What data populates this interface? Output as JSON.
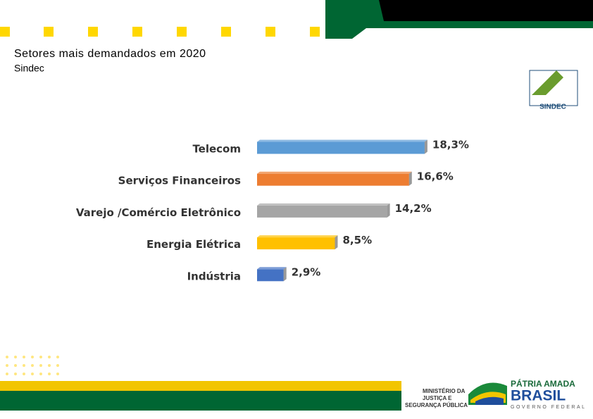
{
  "chart_data": {
    "type": "bar",
    "orientation": "horizontal",
    "title": "Setores mais demandados em 2020",
    "subtitle": "Sindec",
    "categories": [
      "Telecom",
      "Serviços Financeiros",
      "Varejo /Comércio Eletrônico",
      "Energia Elétrica",
      "Indústria"
    ],
    "series": [
      {
        "values": [
          18.3,
          16.6,
          14.2,
          8.5,
          2.9
        ],
        "value_labels": [
          "18,3%",
          "16,6%",
          "14,2%",
          "8,5%",
          "2,9%"
        ],
        "colors": [
          "#5b9bd5",
          "#ed7d31",
          "#a5a5a5",
          "#ffc000",
          "#4472c4"
        ]
      }
    ]
  },
  "branding": {
    "sindec": "SINDEC",
    "ministry": [
      "MINISTÉRIO DA",
      "JUSTIÇA E",
      "SEGURANÇA PÚBLICA"
    ],
    "motto": "PÁTRIA AMADA",
    "country": "BRASIL",
    "government": "GOVERNO FEDERAL"
  }
}
